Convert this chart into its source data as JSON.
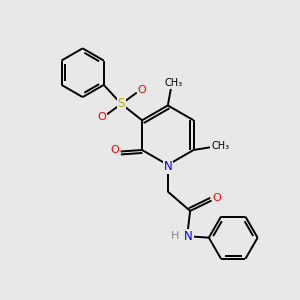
{
  "background_color": "#e8e8e8",
  "line_color": "#000000",
  "atom_colors": {
    "N": "#0000ff",
    "O": "#ff0000",
    "S": "#ccaa00",
    "H": "#888888",
    "C": "#000000"
  }
}
